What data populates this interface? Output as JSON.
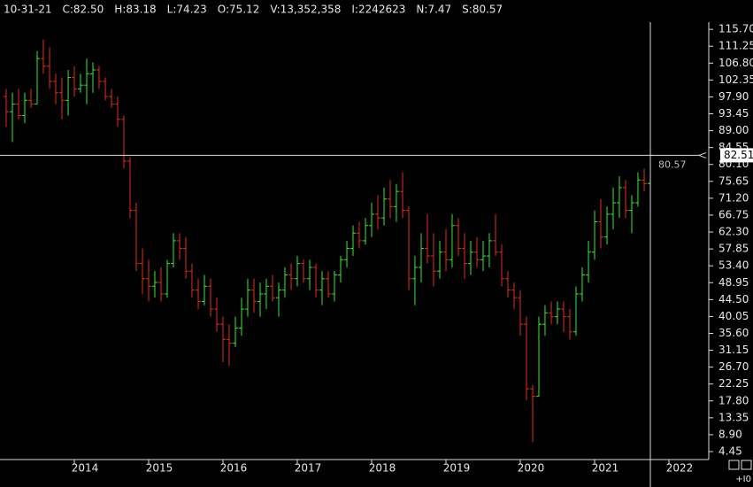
{
  "chart_data": {
    "type": "ohlc",
    "header": [
      "10-31-21",
      "C:82.50",
      "H:83.18",
      "L:74.23",
      "O:75.12",
      "V:13,352,358",
      "I:2242623",
      "N:7.47",
      "S:80.57"
    ],
    "x": [
      2013.083,
      2013.167,
      2013.25,
      2013.333,
      2013.417,
      2013.5,
      2013.583,
      2013.667,
      2013.75,
      2013.833,
      2013.917,
      2014,
      2014.083,
      2014.167,
      2014.25,
      2014.333,
      2014.417,
      2014.5,
      2014.583,
      2014.667,
      2014.75,
      2014.833,
      2014.917,
      2015,
      2015.083,
      2015.167,
      2015.25,
      2015.333,
      2015.417,
      2015.5,
      2015.583,
      2015.667,
      2015.75,
      2015.833,
      2015.917,
      2016,
      2016.083,
      2016.167,
      2016.25,
      2016.333,
      2016.417,
      2016.5,
      2016.583,
      2016.667,
      2016.75,
      2016.833,
      2016.917,
      2017,
      2017.083,
      2017.167,
      2017.25,
      2017.333,
      2017.417,
      2017.5,
      2017.583,
      2017.667,
      2017.75,
      2017.833,
      2017.917,
      2018,
      2018.083,
      2018.167,
      2018.25,
      2018.333,
      2018.417,
      2018.5,
      2018.583,
      2018.667,
      2018.75,
      2018.833,
      2018.917,
      2019,
      2019.083,
      2019.167,
      2019.25,
      2019.333,
      2019.417,
      2019.5,
      2019.583,
      2019.667,
      2019.75,
      2019.833,
      2019.917,
      2020,
      2020.083,
      2020.167,
      2020.25,
      2020.333,
      2020.417,
      2020.5,
      2020.583,
      2020.667,
      2020.75,
      2020.833,
      2020.917,
      2021,
      2021.083,
      2021.167,
      2021.25,
      2021.333,
      2021.417,
      2021.5,
      2021.583,
      2021.667,
      2021.75
    ],
    "open": [
      98,
      94,
      96,
      93,
      97,
      96,
      108,
      106,
      102,
      99,
      97,
      103,
      100,
      101,
      104,
      105,
      102,
      98,
      96,
      92,
      81,
      68,
      54,
      50,
      48,
      49,
      46,
      54,
      60,
      58,
      52,
      47,
      44,
      48,
      42,
      38,
      34,
      33,
      37,
      42,
      47,
      44,
      46,
      48,
      45,
      47,
      51,
      50,
      54,
      50,
      53,
      47,
      50,
      46,
      51,
      55,
      58,
      62,
      60,
      64,
      67,
      66,
      71,
      69,
      73,
      68,
      50,
      53,
      58,
      56,
      52,
      57,
      55,
      64,
      58,
      54,
      57,
      55,
      56,
      60,
      57,
      50,
      47,
      45,
      38,
      21,
      19,
      38,
      41,
      40,
      42,
      40,
      36,
      46,
      51,
      57,
      65,
      61,
      67,
      70,
      74,
      68,
      70,
      76,
      75.12
    ],
    "high": [
      100,
      99,
      100,
      99,
      100,
      110,
      113,
      111,
      104,
      103,
      105,
      106,
      104,
      108,
      107,
      106,
      103,
      100,
      98,
      93,
      82,
      70,
      58,
      55,
      52,
      53,
      55,
      62,
      62,
      61,
      54,
      50,
      51,
      50,
      45,
      40,
      38,
      40,
      45,
      50,
      50,
      49,
      50,
      51,
      49,
      53,
      54,
      56,
      55,
      55,
      54,
      52,
      52,
      52,
      56,
      60,
      64,
      65,
      66,
      70,
      72,
      74,
      76,
      75,
      78,
      69,
      56,
      62,
      67,
      62,
      60,
      63,
      67,
      66,
      62,
      60,
      61,
      60,
      62,
      67,
      59,
      52,
      49,
      47,
      40,
      22,
      40,
      43,
      44,
      44,
      44,
      42,
      48,
      53,
      60,
      68,
      71,
      69,
      74,
      77,
      76,
      72,
      78,
      79,
      83.18
    ],
    "low": [
      90,
      86,
      92,
      91,
      95,
      96,
      104,
      100,
      96,
      92,
      93,
      98,
      99,
      96,
      99,
      100,
      97,
      95,
      90,
      79,
      66,
      52,
      46,
      44,
      45,
      44,
      45,
      53,
      55,
      50,
      45,
      42,
      43,
      40,
      36,
      28,
      27,
      32,
      35,
      40,
      41,
      40,
      42,
      44,
      40,
      45,
      47,
      48,
      49,
      47,
      45,
      43,
      45,
      44,
      49,
      53,
      56,
      58,
      59,
      61,
      63,
      64,
      66,
      65,
      66,
      47,
      43,
      49,
      54,
      48,
      50,
      52,
      53,
      56,
      50,
      51,
      53,
      52,
      53,
      56,
      48,
      45,
      42,
      35,
      18,
      7,
      19,
      35,
      38,
      38,
      36,
      34,
      35,
      44,
      49,
      55,
      58,
      59,
      63,
      66,
      66,
      62,
      69,
      73,
      74.23
    ],
    "close": [
      94,
      96,
      93,
      97,
      96,
      108,
      106,
      102,
      99,
      97,
      103,
      100,
      101,
      104,
      105,
      102,
      98,
      96,
      92,
      81,
      68,
      54,
      50,
      48,
      49,
      46,
      54,
      60,
      58,
      52,
      47,
      44,
      48,
      42,
      38,
      34,
      33,
      37,
      42,
      47,
      44,
      46,
      48,
      45,
      47,
      51,
      50,
      54,
      50,
      53,
      47,
      50,
      46,
      51,
      55,
      58,
      62,
      60,
      64,
      67,
      66,
      71,
      69,
      73,
      68,
      50,
      53,
      58,
      56,
      52,
      57,
      55,
      64,
      58,
      54,
      57,
      55,
      56,
      60,
      57,
      50,
      47,
      45,
      38,
      21,
      19,
      38,
      41,
      40,
      42,
      40,
      36,
      46,
      51,
      57,
      65,
      61,
      67,
      70,
      74,
      68,
      70,
      76,
      75,
      82.5
    ],
    "up_color": "#3ee63e",
    "down_color": "#e0301a",
    "xlim": [
      2013,
      2022.5
    ],
    "xticks": [
      2014,
      2015,
      2016,
      2017,
      2018,
      2019,
      2020,
      2021,
      2022
    ],
    "ylim": [
      2.35,
      117.6
    ],
    "yticks": [
      4.45,
      {
        "value": 8.9,
        "label": "8.90"
      },
      13.35,
      {
        "value": 17.8,
        "label": "17.80"
      },
      22.25,
      {
        "value": 26.7,
        "label": "26.70"
      },
      31.15,
      {
        "value": 35.6,
        "label": "35.60"
      },
      40.05,
      {
        "value": 44.5,
        "label": "44.50"
      },
      48.95,
      {
        "value": 53.4,
        "label": "53.40"
      },
      57.85,
      {
        "value": 62.3,
        "label": "62.30"
      },
      66.75,
      {
        "value": 71.2,
        "label": "71.20"
      },
      75.65,
      {
        "value": 80.1,
        "label": "80.10"
      },
      84.55,
      {
        "value": 89,
        "label": "89.00"
      },
      93.45,
      {
        "value": 97.9,
        "label": "97.90"
      },
      102.35,
      {
        "value": 106.8,
        "label": "106.80"
      },
      111.25,
      {
        "value": 115.7,
        "label": "115.70"
      }
    ],
    "crosshair_value": 82.51,
    "marker_value": 80.57,
    "corner_label": "+I0"
  }
}
